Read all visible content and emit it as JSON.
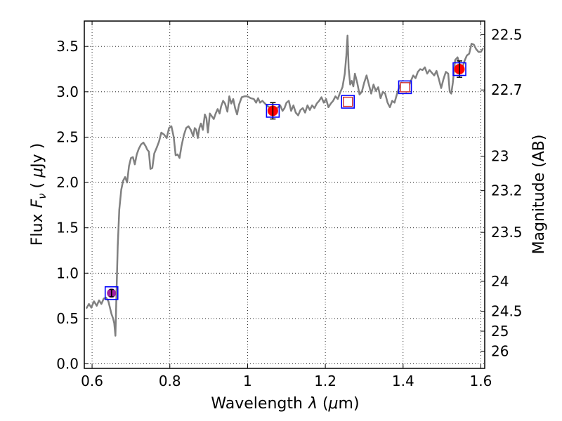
{
  "chart_data": {
    "type": "line",
    "xlabel": "Wavelength",
    "xlabel_symbol": "λ",
    "xlabel_unit_open": " (",
    "xlabel_unit_mu": "μ",
    "xlabel_unit_rest": "m)",
    "ylabel": "Flux",
    "ylabel_symbol": "F",
    "ylabel_subscript": "ν",
    "ylabel_unit_open": " ( ",
    "ylabel_unit_mu": "μ",
    "ylabel_unit_rest": "Jy )",
    "y2label": "Magnitude (AB)",
    "xlim": [
      0.58,
      1.61
    ],
    "ylim": [
      -0.05,
      3.78
    ],
    "grid": true,
    "x_ticks": [
      0.6,
      0.8,
      1.0,
      1.2,
      1.4,
      1.6
    ],
    "x_tick_labels": [
      "0.6",
      "0.8",
      "1",
      "1.2",
      "1.4",
      "1.6"
    ],
    "y_ticks": [
      0.0,
      0.5,
      1.0,
      1.5,
      2.0,
      2.5,
      3.0,
      3.5
    ],
    "y_tick_labels": [
      "0.0",
      "0.5",
      "1.0",
      "1.5",
      "2.0",
      "2.5",
      "3.0",
      "3.5"
    ],
    "y2_ticks": [
      {
        "label": "22.5",
        "flux": 3.63
      },
      {
        "label": "22.7",
        "flux": 3.02
      },
      {
        "label": "23",
        "flux": 2.29
      },
      {
        "label": "23.2",
        "flux": 1.91
      },
      {
        "label": "23.5",
        "flux": 1.45
      },
      {
        "label": "24",
        "flux": 0.91
      },
      {
        "label": "24.5",
        "flux": 0.58
      },
      {
        "label": "25",
        "flux": 0.36
      },
      {
        "label": "26",
        "flux": 0.14
      }
    ],
    "series": [
      {
        "kind": "model-spectrum",
        "color": "#808080",
        "points": [
          [
            0.585,
            0.61
          ],
          [
            0.592,
            0.66
          ],
          [
            0.598,
            0.62
          ],
          [
            0.605,
            0.69
          ],
          [
            0.612,
            0.64
          ],
          [
            0.618,
            0.7
          ],
          [
            0.624,
            0.66
          ],
          [
            0.63,
            0.72
          ],
          [
            0.636,
            0.73
          ],
          [
            0.642,
            0.69
          ],
          [
            0.646,
            0.62
          ],
          [
            0.65,
            0.55
          ],
          [
            0.654,
            0.5
          ],
          [
            0.657,
            0.45
          ],
          [
            0.66,
            0.31
          ],
          [
            0.663,
            0.8
          ],
          [
            0.666,
            1.3
          ],
          [
            0.67,
            1.7
          ],
          [
            0.675,
            1.92
          ],
          [
            0.68,
            2.02
          ],
          [
            0.685,
            2.06
          ],
          [
            0.69,
            2.0
          ],
          [
            0.695,
            2.18
          ],
          [
            0.7,
            2.27
          ],
          [
            0.705,
            2.28
          ],
          [
            0.71,
            2.2
          ],
          [
            0.715,
            2.31
          ],
          [
            0.72,
            2.37
          ],
          [
            0.726,
            2.42
          ],
          [
            0.732,
            2.44
          ],
          [
            0.738,
            2.4
          ],
          [
            0.742,
            2.36
          ],
          [
            0.746,
            2.34
          ],
          [
            0.75,
            2.15
          ],
          [
            0.755,
            2.16
          ],
          [
            0.76,
            2.32
          ],
          [
            0.766,
            2.38
          ],
          [
            0.772,
            2.45
          ],
          [
            0.778,
            2.55
          ],
          [
            0.785,
            2.53
          ],
          [
            0.792,
            2.49
          ],
          [
            0.798,
            2.6
          ],
          [
            0.804,
            2.62
          ],
          [
            0.81,
            2.5
          ],
          [
            0.815,
            2.3
          ],
          [
            0.82,
            2.31
          ],
          [
            0.825,
            2.27
          ],
          [
            0.83,
            2.4
          ],
          [
            0.836,
            2.52
          ],
          [
            0.842,
            2.6
          ],
          [
            0.848,
            2.62
          ],
          [
            0.854,
            2.58
          ],
          [
            0.86,
            2.51
          ],
          [
            0.864,
            2.6
          ],
          [
            0.868,
            2.58
          ],
          [
            0.872,
            2.49
          ],
          [
            0.876,
            2.6
          ],
          [
            0.88,
            2.65
          ],
          [
            0.885,
            2.58
          ],
          [
            0.89,
            2.75
          ],
          [
            0.894,
            2.71
          ],
          [
            0.898,
            2.55
          ],
          [
            0.903,
            2.76
          ],
          [
            0.908,
            2.73
          ],
          [
            0.913,
            2.7
          ],
          [
            0.918,
            2.76
          ],
          [
            0.923,
            2.81
          ],
          [
            0.928,
            2.76
          ],
          [
            0.932,
            2.84
          ],
          [
            0.937,
            2.9
          ],
          [
            0.942,
            2.87
          ],
          [
            0.948,
            2.78
          ],
          [
            0.953,
            2.95
          ],
          [
            0.958,
            2.87
          ],
          [
            0.963,
            2.92
          ],
          [
            0.968,
            2.82
          ],
          [
            0.973,
            2.75
          ],
          [
            0.978,
            2.86
          ],
          [
            0.985,
            2.94
          ],
          [
            0.992,
            2.95
          ],
          [
            1.0,
            2.95
          ],
          [
            1.008,
            2.93
          ],
          [
            1.016,
            2.92
          ],
          [
            1.022,
            2.88
          ],
          [
            1.027,
            2.93
          ],
          [
            1.032,
            2.88
          ],
          [
            1.038,
            2.9
          ],
          [
            1.045,
            2.87
          ],
          [
            1.052,
            2.84
          ],
          [
            1.06,
            2.82
          ],
          [
            1.068,
            2.81
          ],
          [
            1.076,
            2.82
          ],
          [
            1.084,
            2.85
          ],
          [
            1.09,
            2.79
          ],
          [
            1.095,
            2.82
          ],
          [
            1.1,
            2.88
          ],
          [
            1.106,
            2.9
          ],
          [
            1.112,
            2.79
          ],
          [
            1.118,
            2.85
          ],
          [
            1.124,
            2.77
          ],
          [
            1.13,
            2.74
          ],
          [
            1.136,
            2.8
          ],
          [
            1.142,
            2.82
          ],
          [
            1.148,
            2.77
          ],
          [
            1.154,
            2.85
          ],
          [
            1.16,
            2.8
          ],
          [
            1.166,
            2.85
          ],
          [
            1.172,
            2.82
          ],
          [
            1.178,
            2.87
          ],
          [
            1.184,
            2.9
          ],
          [
            1.19,
            2.94
          ],
          [
            1.196,
            2.88
          ],
          [
            1.202,
            2.92
          ],
          [
            1.208,
            2.83
          ],
          [
            1.214,
            2.87
          ],
          [
            1.22,
            2.9
          ],
          [
            1.226,
            2.95
          ],
          [
            1.232,
            2.92
          ],
          [
            1.238,
            2.99
          ],
          [
            1.244,
            3.05
          ],
          [
            1.25,
            3.2
          ],
          [
            1.254,
            3.4
          ],
          [
            1.257,
            3.62
          ],
          [
            1.26,
            3.26
          ],
          [
            1.264,
            3.08
          ],
          [
            1.268,
            3.12
          ],
          [
            1.272,
            3.06
          ],
          [
            1.276,
            3.2
          ],
          [
            1.282,
            3.1
          ],
          [
            1.288,
            2.97
          ],
          [
            1.294,
            3.0
          ],
          [
            1.3,
            3.1
          ],
          [
            1.306,
            3.18
          ],
          [
            1.312,
            3.08
          ],
          [
            1.318,
            2.98
          ],
          [
            1.324,
            3.08
          ],
          [
            1.33,
            3.01
          ],
          [
            1.336,
            3.05
          ],
          [
            1.342,
            2.93
          ],
          [
            1.348,
            3.0
          ],
          [
            1.354,
            2.98
          ],
          [
            1.36,
            2.88
          ],
          [
            1.366,
            2.83
          ],
          [
            1.372,
            2.9
          ],
          [
            1.378,
            2.88
          ],
          [
            1.384,
            2.97
          ],
          [
            1.39,
            3.05
          ],
          [
            1.396,
            3.1
          ],
          [
            1.402,
            3.08
          ],
          [
            1.408,
            3.0
          ],
          [
            1.414,
            3.06
          ],
          [
            1.42,
            3.12
          ],
          [
            1.426,
            3.18
          ],
          [
            1.432,
            3.15
          ],
          [
            1.438,
            3.22
          ],
          [
            1.444,
            3.25
          ],
          [
            1.45,
            3.24
          ],
          [
            1.456,
            3.27
          ],
          [
            1.462,
            3.2
          ],
          [
            1.468,
            3.24
          ],
          [
            1.474,
            3.21
          ],
          [
            1.48,
            3.18
          ],
          [
            1.486,
            3.23
          ],
          [
            1.492,
            3.14
          ],
          [
            1.498,
            3.04
          ],
          [
            1.504,
            3.14
          ],
          [
            1.51,
            3.22
          ],
          [
            1.516,
            3.2
          ],
          [
            1.52,
            3.0
          ],
          [
            1.524,
            2.98
          ],
          [
            1.528,
            3.1
          ],
          [
            1.534,
            3.35
          ],
          [
            1.54,
            3.38
          ],
          [
            1.546,
            3.3
          ],
          [
            1.552,
            3.25
          ],
          [
            1.558,
            3.34
          ],
          [
            1.564,
            3.4
          ],
          [
            1.57,
            3.42
          ],
          [
            1.576,
            3.53
          ],
          [
            1.582,
            3.52
          ],
          [
            1.588,
            3.47
          ],
          [
            1.594,
            3.44
          ],
          [
            1.6,
            3.44
          ],
          [
            1.606,
            3.48
          ]
        ]
      },
      {
        "kind": "observed-red",
        "color": "#ff0000",
        "points": [
          {
            "x": 1.065,
            "y": 2.79,
            "yerr": 0.09
          },
          {
            "x": 1.545,
            "y": 3.25,
            "yerr": 0.09
          }
        ]
      },
      {
        "kind": "observed-purple",
        "color": "#a020a0",
        "points": [
          {
            "x": 0.65,
            "y": 0.78,
            "yerr": 0.04
          }
        ]
      },
      {
        "kind": "model-synthetic",
        "color": "#0000ff",
        "points": [
          {
            "x": 0.65,
            "y": 0.78
          },
          {
            "x": 1.065,
            "y": 2.79
          },
          {
            "x": 1.258,
            "y": 2.89
          },
          {
            "x": 1.405,
            "y": 3.05
          },
          {
            "x": 1.545,
            "y": 3.25
          }
        ]
      },
      {
        "kind": "predicted-open",
        "color": "#cc2222",
        "points": [
          {
            "x": 1.258,
            "y": 2.89
          },
          {
            "x": 1.405,
            "y": 3.05
          }
        ]
      }
    ]
  }
}
